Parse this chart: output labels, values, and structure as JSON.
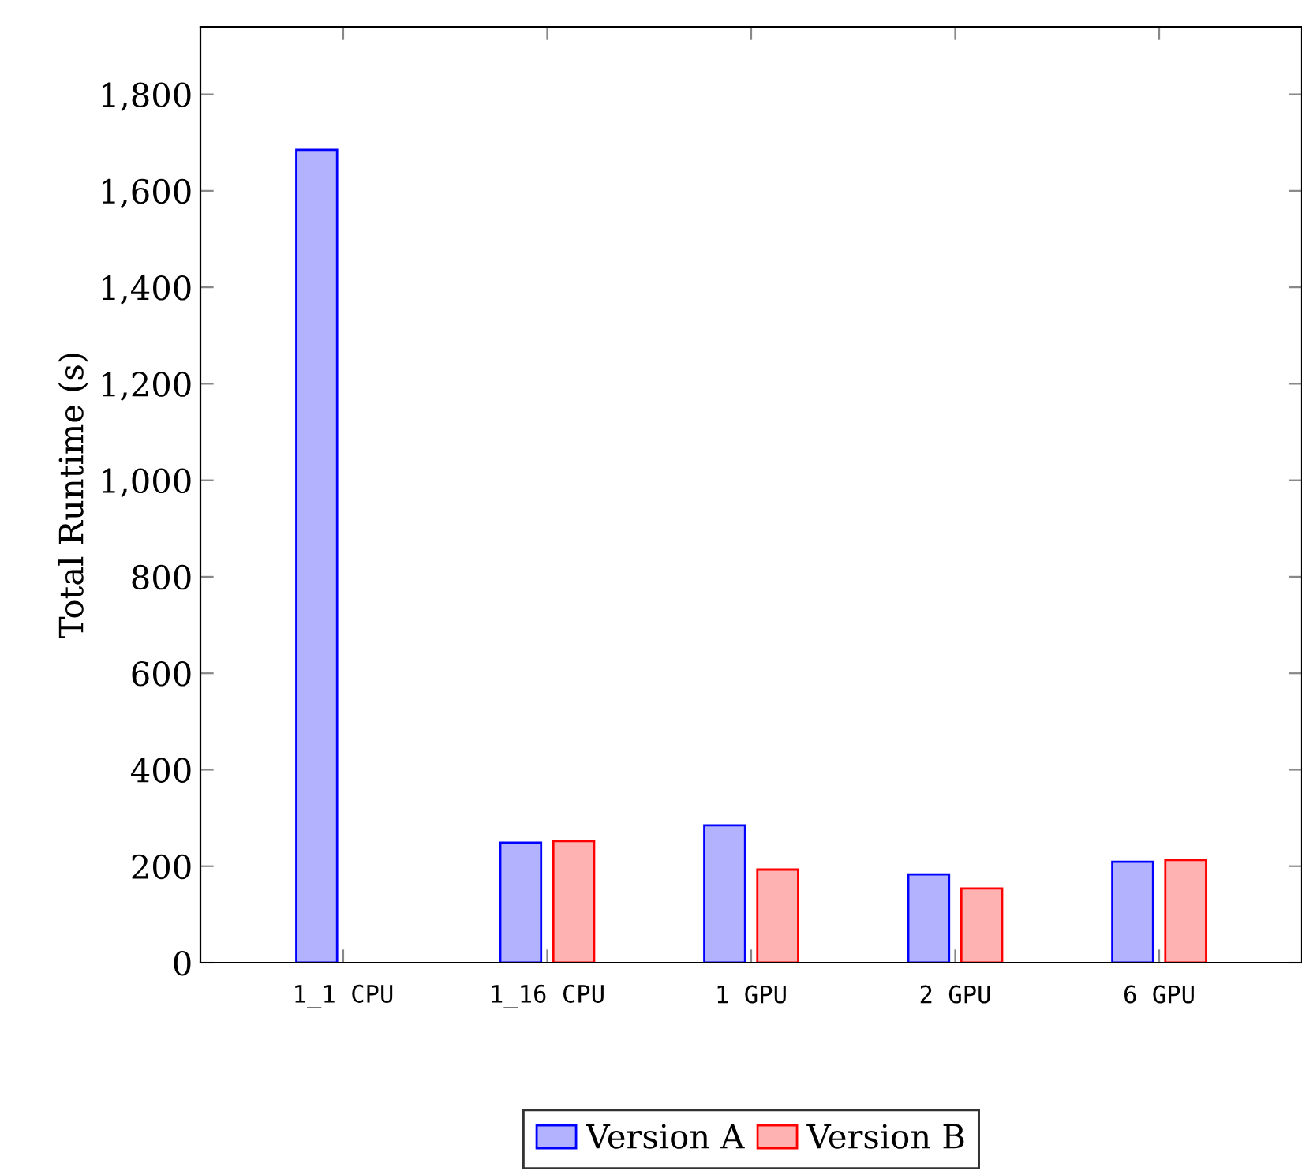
{
  "chart_data": {
    "type": "bar",
    "ylabel": "Total Runtime (s)",
    "categories": [
      "1_1 CPU",
      "1_16 CPU",
      "1 GPU",
      "2 GPU",
      "6 GPU"
    ],
    "series": [
      {
        "name": "Version A",
        "color": "#0000ff",
        "values": [
          1685,
          249,
          285,
          183,
          209
        ]
      },
      {
        "name": "Version B",
        "color": "#ff0000",
        "values": [
          null,
          252,
          193,
          154,
          213
        ]
      }
    ],
    "ylim": [
      0,
      1940
    ],
    "yticks": [
      0,
      {
        "value": 200,
        "label": "200"
      },
      {
        "value": 400,
        "label": "400"
      },
      {
        "value": 600,
        "label": "600"
      },
      {
        "value": 800,
        "label": "800"
      },
      {
        "value": 1000,
        "label": "1,000"
      },
      {
        "value": 1200,
        "label": "1,200"
      },
      {
        "value": 1400,
        "label": "1,400"
      },
      {
        "value": 1600,
        "label": "1,600"
      },
      {
        "value": 1800,
        "label": "1,800"
      }
    ],
    "legend": "bottom",
    "grid": false
  }
}
